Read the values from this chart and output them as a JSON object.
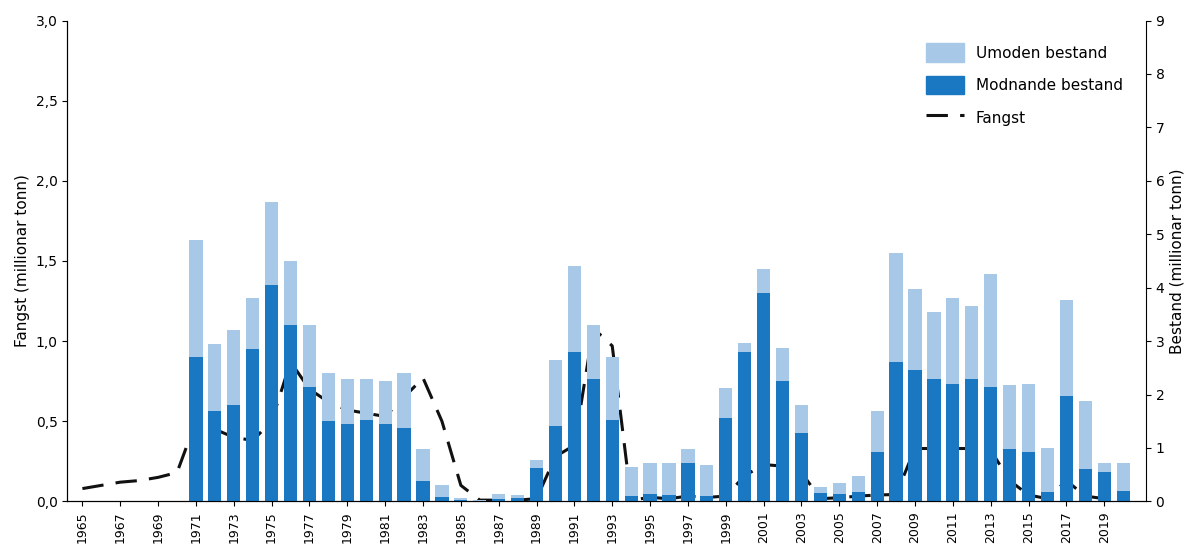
{
  "years": [
    1965,
    1966,
    1967,
    1968,
    1969,
    1970,
    1971,
    1972,
    1973,
    1974,
    1975,
    1976,
    1977,
    1978,
    1979,
    1980,
    1981,
    1982,
    1983,
    1984,
    1985,
    1986,
    1987,
    1988,
    1989,
    1990,
    1991,
    1992,
    1993,
    1994,
    1995,
    1996,
    1997,
    1998,
    1999,
    2000,
    2001,
    2002,
    2003,
    2004,
    2005,
    2006,
    2007,
    2008,
    2009,
    2010,
    2011,
    2012,
    2013,
    2014,
    2015,
    2016,
    2017,
    2018,
    2019,
    2020
  ],
  "umoden": [
    0,
    0,
    0,
    0,
    0,
    0,
    2.2,
    1.25,
    1.4,
    0.95,
    1.55,
    1.2,
    1.15,
    0.9,
    0.85,
    0.78,
    0.8,
    1.02,
    0.6,
    0.22,
    0.03,
    0.01,
    0.1,
    0.05,
    0.15,
    1.23,
    1.6,
    1.0,
    1.18,
    0.55,
    0.57,
    0.6,
    0.27,
    0.59,
    0.55,
    0.17,
    0.45,
    0.63,
    0.52,
    0.12,
    0.22,
    0.3,
    0.77,
    2.05,
    1.53,
    1.25,
    1.6,
    1.35,
    2.1,
    1.2,
    1.27,
    0.83,
    1.78,
    1.28,
    0.17,
    0.52
  ],
  "modnande": [
    0,
    0,
    0,
    0,
    0,
    0,
    2.7,
    1.7,
    1.8,
    2.85,
    4.05,
    3.3,
    2.15,
    1.5,
    1.45,
    1.52,
    1.45,
    1.38,
    0.38,
    0.08,
    0.03,
    0.01,
    0.04,
    0.07,
    0.62,
    1.42,
    2.8,
    2.3,
    1.52,
    0.1,
    0.14,
    0.12,
    0.72,
    0.1,
    1.57,
    2.8,
    3.9,
    2.25,
    1.28,
    0.15,
    0.13,
    0.17,
    0.93,
    2.6,
    2.45,
    2.3,
    2.2,
    2.3,
    2.15,
    0.98,
    0.93,
    0.17,
    1.98,
    0.6,
    0.55,
    0.2
  ],
  "fangst": [
    0.08,
    0.1,
    0.12,
    0.13,
    0.15,
    0.18,
    0.5,
    0.45,
    0.4,
    0.38,
    0.5,
    0.87,
    0.7,
    0.62,
    0.57,
    0.55,
    0.53,
    0.65,
    0.77,
    0.5,
    0.1,
    0.008,
    0.008,
    0.008,
    0.017,
    0.28,
    0.35,
    1.08,
    0.97,
    0.008,
    0.025,
    0.017,
    0.033,
    0.025,
    0.033,
    0.16,
    0.23,
    0.22,
    0.18,
    0.017,
    0.023,
    0.033,
    0.04,
    0.043,
    0.33,
    0.33,
    0.33,
    0.33,
    0.32,
    0.13,
    0.04,
    0.017,
    0.13,
    0.033,
    0.017,
    0.017
  ],
  "ylabel_left": "Fangst (millionar tonn)",
  "ylabel_right": "Bestand (millionar tonn)",
  "ylim_left": [
    0,
    3.0
  ],
  "ylim_right": [
    0,
    9
  ],
  "yticks_left": [
    0.0,
    0.5,
    1.0,
    1.5,
    2.0,
    2.5,
    3.0
  ],
  "ytick_labels_left": [
    "0,0",
    "0,5",
    "1,0",
    "1,5",
    "2,0",
    "2,5",
    "3,0"
  ],
  "yticks_right": [
    0,
    1,
    2,
    3,
    4,
    5,
    6,
    7,
    8,
    9
  ],
  "color_umoden": "#a8c8e8",
  "color_modnande": "#1a78c2",
  "color_fangst": "#111111",
  "legend_umoden": "Umoden bestand",
  "legend_modnande": "Modnande bestand",
  "legend_fangst": "Fangst",
  "bar_width": 0.7
}
